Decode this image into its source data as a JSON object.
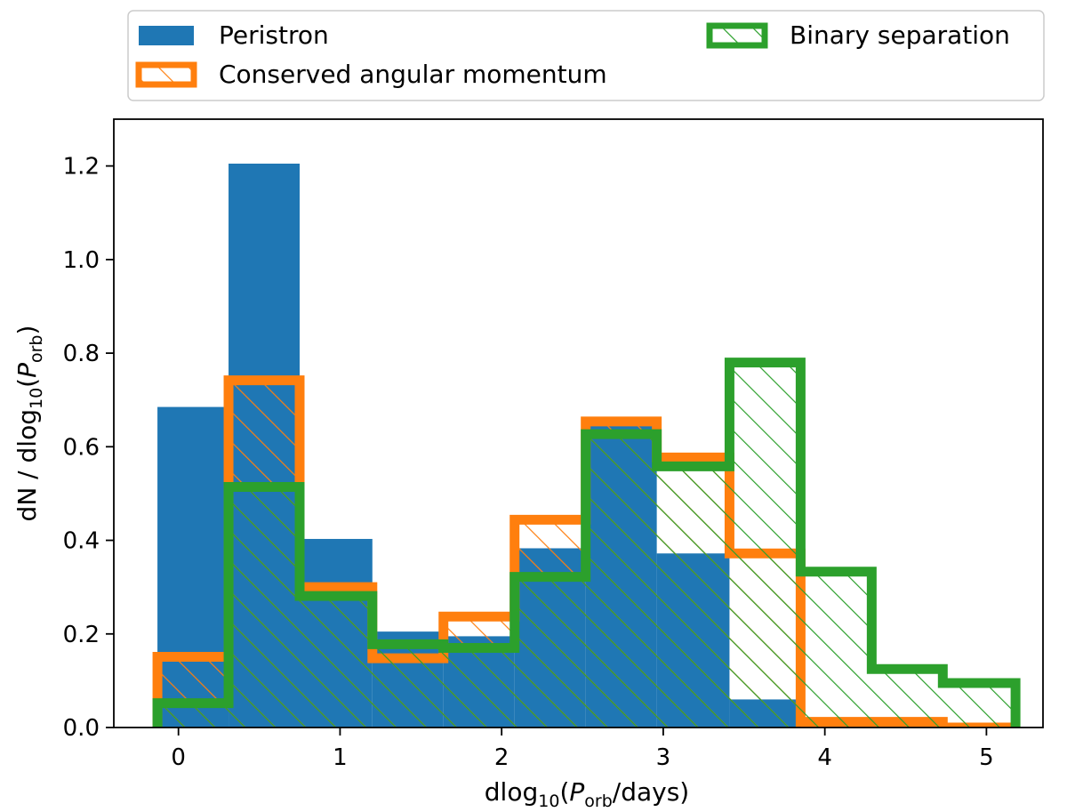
{
  "chart_data": {
    "type": "histogram",
    "xlabel": {
      "main": "dlog",
      "sub": "10",
      "paren_open": "(",
      "var": "P",
      "var_sub": "orb",
      "rest": "/days)"
    },
    "ylabel": {
      "main": "dN / dlog",
      "sub": "10",
      "paren_open": "(",
      "var": "P",
      "var_sub": "orb",
      "rest": ")"
    },
    "xlim": [
      -0.4,
      5.35
    ],
    "ylim": [
      0,
      1.3
    ],
    "xticks": [
      0,
      1,
      2,
      3,
      4,
      5
    ],
    "yticks": [
      0.0,
      0.2,
      0.4,
      0.6,
      0.8,
      1.0,
      1.2
    ],
    "legend_position": "top, above plot",
    "bin_edges": [
      -0.13,
      0.31,
      0.75,
      1.2,
      1.64,
      2.08,
      2.52,
      2.96,
      3.41,
      3.85,
      4.29,
      4.73,
      5.18
    ],
    "series": [
      {
        "name": "Peristron",
        "style": "filled",
        "color": "#1f77b4",
        "values": [
          0.685,
          1.205,
          0.403,
          0.205,
          0.195,
          0.383,
          0.646,
          0.372,
          0.06,
          0.0,
          0.0,
          0.0
        ]
      },
      {
        "name": "Conserved angular momentum",
        "style": "step-hatched",
        "color": "#ff7f0e",
        "values": [
          0.151,
          0.742,
          0.3,
          0.148,
          0.237,
          0.444,
          0.654,
          0.577,
          0.372,
          0.012,
          0.012,
          0.0
        ]
      },
      {
        "name": "Binary separation",
        "style": "step-hatched",
        "color": "#2ca02c",
        "values": [
          0.052,
          0.514,
          0.281,
          0.178,
          0.17,
          0.322,
          0.627,
          0.558,
          0.78,
          0.333,
          0.125,
          0.095
        ]
      }
    ]
  }
}
